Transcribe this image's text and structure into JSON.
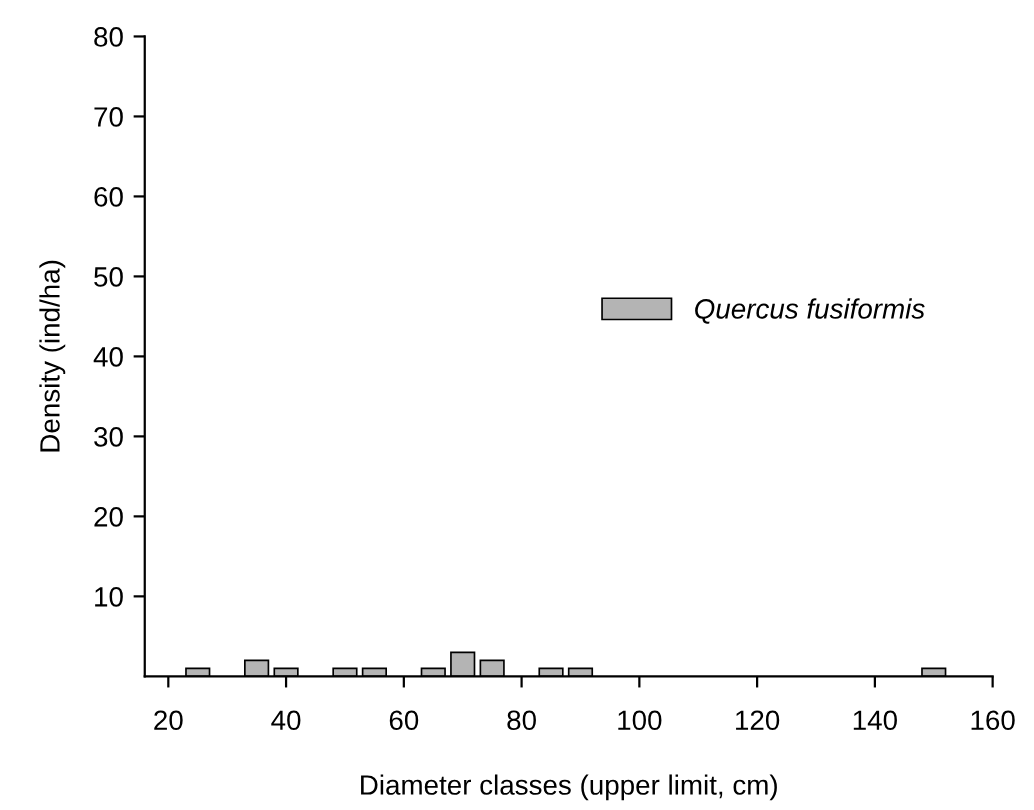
{
  "chart_data": {
    "type": "bar",
    "xlabel": "Diameter classes (upper limit, cm)",
    "ylabel": "Density (ind/ha)",
    "x": [
      25,
      35,
      40,
      50,
      55,
      65,
      70,
      75,
      85,
      90,
      150
    ],
    "series": [
      {
        "name": "Quercus fusiformis",
        "color": "#b4b4b4",
        "values": [
          1,
          2,
          1,
          1,
          1,
          1,
          3,
          2,
          1,
          1,
          1
        ]
      }
    ],
    "xlim": [
      16,
      160
    ],
    "xticks": [
      20,
      40,
      60,
      80,
      100,
      120,
      140,
      160
    ],
    "ylim": [
      0,
      80
    ],
    "yticks": [
      10,
      20,
      30,
      40,
      50,
      60,
      70,
      80
    ],
    "grid": false,
    "legend": "top right"
  }
}
